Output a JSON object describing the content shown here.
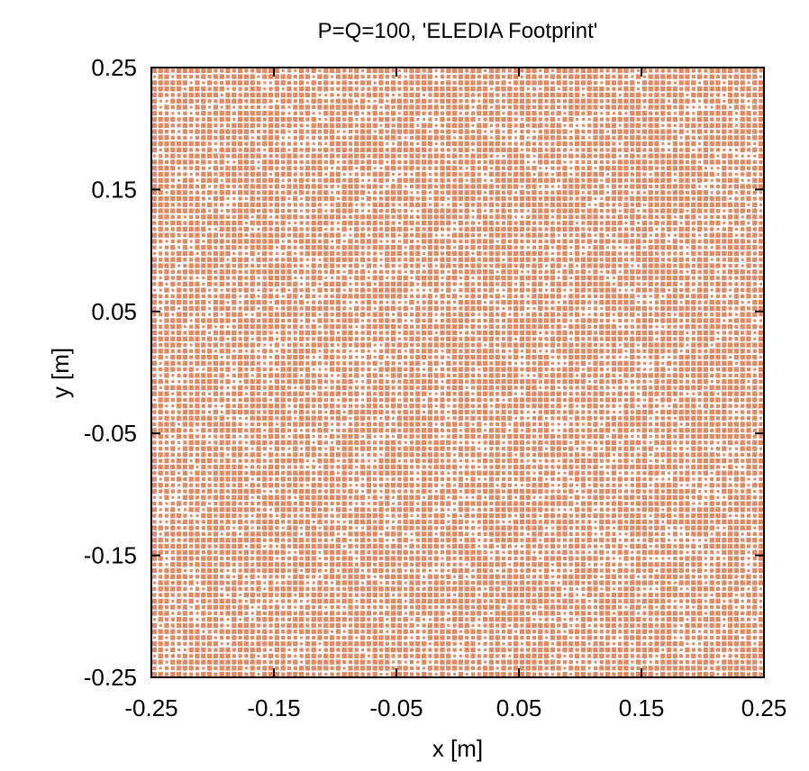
{
  "chart_data": {
    "type": "heatmap",
    "title": "P=Q=100, 'ELEDIA Footprint'",
    "xlabel": "x [m]",
    "ylabel": "y [m]",
    "xlim": [
      -0.25,
      0.25
    ],
    "ylim": [
      -0.25,
      0.25
    ],
    "xticks": [
      -0.25,
      -0.15,
      -0.05,
      0.05,
      0.15,
      0.25
    ],
    "yticks": [
      -0.25,
      -0.15,
      -0.05,
      0.05,
      0.15,
      0.25
    ],
    "xtick_labels": [
      "-0.25",
      "-0.15",
      "-0.05",
      "0.05",
      "0.15",
      "0.25"
    ],
    "ytick_labels": [
      "-0.25",
      "-0.15",
      "-0.05",
      "0.05",
      "0.15",
      "0.25"
    ],
    "grid": false,
    "legend": false,
    "P": 100,
    "Q": 100,
    "cell_color": "#e08a64",
    "background_color": "#ffffff",
    "axis_color": "#000000"
  }
}
